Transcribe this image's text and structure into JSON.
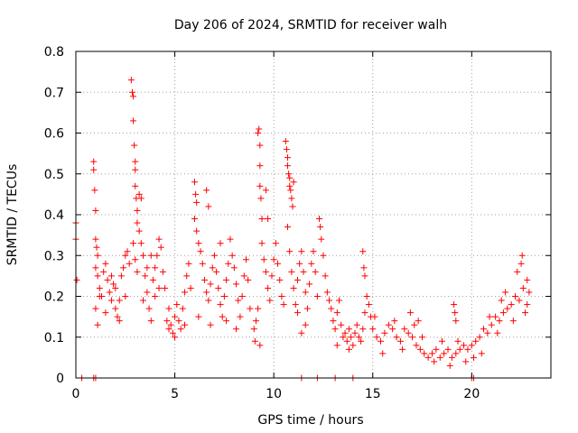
{
  "chart_data": {
    "type": "scatter",
    "title": "Day 206 of 2024, SRMTID for receiver walh",
    "xlabel": "GPS time / hours",
    "ylabel": "SRMTID / TECUs",
    "xlim": [
      0,
      24
    ],
    "ylim": [
      0,
      0.8
    ],
    "x_ticks": [
      0,
      5,
      10,
      15,
      20
    ],
    "y_ticks": [
      0,
      0.1,
      0.2,
      0.3,
      0.4,
      0.5,
      0.6,
      0.7,
      0.8
    ],
    "x_tick_labels": [
      "0",
      "5",
      "10",
      "15",
      "20"
    ],
    "y_tick_labels": [
      "0",
      "0.1",
      "0.2",
      "0.3",
      "0.4",
      "0.5",
      "0.6",
      "0.7",
      "0.8"
    ],
    "grid": true,
    "series": [
      {
        "name": "SRMTID",
        "color": "#ff0000",
        "marker": "plus",
        "points": [
          [
            0.0,
            0.38
          ],
          [
            0.0,
            0.34
          ],
          [
            0.05,
            0.24
          ],
          [
            0.3,
            0.0
          ],
          [
            0.9,
            0.0
          ],
          [
            1.0,
            0.0
          ],
          [
            0.9,
            0.53
          ],
          [
            0.9,
            0.51
          ],
          [
            0.95,
            0.46
          ],
          [
            1.0,
            0.41
          ],
          [
            1.0,
            0.34
          ],
          [
            1.05,
            0.32
          ],
          [
            1.1,
            0.3
          ],
          [
            1.0,
            0.27
          ],
          [
            1.1,
            0.25
          ],
          [
            1.2,
            0.22
          ],
          [
            1.3,
            0.2
          ],
          [
            1.4,
            0.26
          ],
          [
            1.5,
            0.28
          ],
          [
            1.6,
            0.24
          ],
          [
            1.7,
            0.21
          ],
          [
            1.8,
            0.19
          ],
          [
            1.9,
            0.23
          ],
          [
            2.0,
            0.17
          ],
          [
            2.1,
            0.15
          ],
          [
            2.2,
            0.19
          ],
          [
            2.3,
            0.25
          ],
          [
            2.4,
            0.27
          ],
          [
            2.5,
            0.3
          ],
          [
            2.6,
            0.31
          ],
          [
            2.7,
            0.28
          ],
          [
            1.0,
            0.17
          ],
          [
            1.1,
            0.13
          ],
          [
            1.2,
            0.2
          ],
          [
            1.5,
            0.16
          ],
          [
            1.8,
            0.25
          ],
          [
            2.0,
            0.22
          ],
          [
            2.2,
            0.14
          ],
          [
            2.5,
            0.2
          ],
          [
            2.8,
            0.73
          ],
          [
            2.85,
            0.7
          ],
          [
            2.9,
            0.69
          ],
          [
            2.9,
            0.63
          ],
          [
            2.95,
            0.57
          ],
          [
            3.0,
            0.51
          ],
          [
            3.0,
            0.53
          ],
          [
            3.0,
            0.47
          ],
          [
            3.05,
            0.44
          ],
          [
            3.1,
            0.41
          ],
          [
            3.1,
            0.38
          ],
          [
            3.2,
            0.36
          ],
          [
            3.2,
            0.45
          ],
          [
            3.3,
            0.44
          ],
          [
            3.3,
            0.33
          ],
          [
            3.4,
            0.3
          ],
          [
            3.5,
            0.25
          ],
          [
            3.6,
            0.21
          ],
          [
            3.7,
            0.17
          ],
          [
            3.8,
            0.14
          ],
          [
            3.9,
            0.24
          ],
          [
            4.0,
            0.27
          ],
          [
            4.1,
            0.3
          ],
          [
            4.2,
            0.34
          ],
          [
            4.3,
            0.32
          ],
          [
            4.4,
            0.26
          ],
          [
            4.5,
            0.22
          ],
          [
            3.4,
            0.19
          ],
          [
            3.6,
            0.27
          ],
          [
            3.8,
            0.3
          ],
          [
            4.0,
            0.2
          ],
          [
            4.2,
            0.22
          ],
          [
            2.9,
            0.33
          ],
          [
            3.0,
            0.29
          ],
          [
            3.1,
            0.26
          ],
          [
            4.6,
            0.14
          ],
          [
            4.7,
            0.12
          ],
          [
            4.8,
            0.13
          ],
          [
            4.9,
            0.11
          ],
          [
            5.0,
            0.15
          ],
          [
            5.1,
            0.18
          ],
          [
            5.2,
            0.14
          ],
          [
            5.3,
            0.12
          ],
          [
            5.4,
            0.17
          ],
          [
            5.5,
            0.21
          ],
          [
            5.6,
            0.25
          ],
          [
            5.7,
            0.28
          ],
          [
            5.8,
            0.22
          ],
          [
            4.7,
            0.17
          ],
          [
            5.0,
            0.1
          ],
          [
            5.5,
            0.13
          ],
          [
            6.0,
            0.48
          ],
          [
            6.05,
            0.45
          ],
          [
            6.1,
            0.43
          ],
          [
            6.0,
            0.39
          ],
          [
            6.1,
            0.36
          ],
          [
            6.2,
            0.33
          ],
          [
            6.3,
            0.31
          ],
          [
            6.4,
            0.28
          ],
          [
            6.5,
            0.24
          ],
          [
            6.6,
            0.21
          ],
          [
            6.7,
            0.19
          ],
          [
            6.8,
            0.23
          ],
          [
            6.9,
            0.27
          ],
          [
            7.0,
            0.3
          ],
          [
            7.1,
            0.26
          ],
          [
            7.2,
            0.22
          ],
          [
            7.3,
            0.18
          ],
          [
            7.4,
            0.15
          ],
          [
            7.5,
            0.2
          ],
          [
            7.6,
            0.24
          ],
          [
            7.7,
            0.28
          ],
          [
            7.8,
            0.34
          ],
          [
            7.9,
            0.3
          ],
          [
            8.0,
            0.27
          ],
          [
            8.1,
            0.23
          ],
          [
            8.2,
            0.19
          ],
          [
            8.3,
            0.15
          ],
          [
            8.4,
            0.2
          ],
          [
            8.5,
            0.25
          ],
          [
            8.6,
            0.29
          ],
          [
            8.7,
            0.24
          ],
          [
            8.8,
            0.17
          ],
          [
            6.6,
            0.46
          ],
          [
            6.7,
            0.42
          ],
          [
            6.2,
            0.15
          ],
          [
            6.8,
            0.13
          ],
          [
            7.3,
            0.33
          ],
          [
            7.6,
            0.14
          ],
          [
            8.1,
            0.12
          ],
          [
            9.0,
            0.12
          ],
          [
            9.05,
            0.09
          ],
          [
            9.1,
            0.14
          ],
          [
            9.2,
            0.6
          ],
          [
            9.25,
            0.61
          ],
          [
            9.3,
            0.57
          ],
          [
            9.3,
            0.52
          ],
          [
            9.3,
            0.47
          ],
          [
            9.35,
            0.44
          ],
          [
            9.4,
            0.39
          ],
          [
            9.4,
            0.33
          ],
          [
            9.5,
            0.29
          ],
          [
            9.6,
            0.26
          ],
          [
            9.7,
            0.22
          ],
          [
            9.8,
            0.19
          ],
          [
            9.9,
            0.25
          ],
          [
            10.0,
            0.29
          ],
          [
            10.1,
            0.33
          ],
          [
            10.2,
            0.28
          ],
          [
            10.3,
            0.24
          ],
          [
            10.4,
            0.2
          ],
          [
            10.5,
            0.18
          ],
          [
            9.6,
            0.46
          ],
          [
            9.7,
            0.39
          ],
          [
            9.2,
            0.17
          ],
          [
            9.3,
            0.08
          ],
          [
            10.6,
            0.58
          ],
          [
            10.65,
            0.56
          ],
          [
            10.7,
            0.54
          ],
          [
            10.7,
            0.52
          ],
          [
            10.75,
            0.5
          ],
          [
            10.8,
            0.49
          ],
          [
            10.8,
            0.47
          ],
          [
            10.85,
            0.46
          ],
          [
            10.9,
            0.44
          ],
          [
            10.95,
            0.42
          ],
          [
            11.0,
            0.48
          ],
          [
            10.7,
            0.37
          ],
          [
            10.8,
            0.31
          ],
          [
            10.9,
            0.26
          ],
          [
            11.0,
            0.22
          ],
          [
            11.1,
            0.18
          ],
          [
            11.2,
            0.24
          ],
          [
            11.3,
            0.28
          ],
          [
            11.4,
            0.31
          ],
          [
            11.5,
            0.26
          ],
          [
            11.6,
            0.21
          ],
          [
            11.7,
            0.17
          ],
          [
            11.8,
            0.23
          ],
          [
            11.9,
            0.28
          ],
          [
            12.0,
            0.31
          ],
          [
            12.1,
            0.26
          ],
          [
            12.2,
            0.2
          ],
          [
            11.2,
            0.16
          ],
          [
            11.4,
            0.11
          ],
          [
            11.6,
            0.13
          ],
          [
            12.3,
            0.39
          ],
          [
            12.35,
            0.37
          ],
          [
            12.4,
            0.34
          ],
          [
            12.5,
            0.3
          ],
          [
            12.6,
            0.25
          ],
          [
            12.7,
            0.21
          ],
          [
            12.8,
            0.19
          ],
          [
            12.9,
            0.17
          ],
          [
            13.0,
            0.14
          ],
          [
            13.1,
            0.12
          ],
          [
            13.2,
            0.16
          ],
          [
            13.3,
            0.19
          ],
          [
            13.4,
            0.13
          ],
          [
            13.5,
            0.1
          ],
          [
            13.6,
            0.11
          ],
          [
            13.7,
            0.09
          ],
          [
            13.8,
            0.12
          ],
          [
            13.9,
            0.1
          ],
          [
            14.0,
            0.08
          ],
          [
            14.1,
            0.11
          ],
          [
            14.2,
            0.13
          ],
          [
            14.3,
            0.1
          ],
          [
            14.4,
            0.09
          ],
          [
            14.5,
            0.12
          ],
          [
            14.6,
            0.16
          ],
          [
            14.7,
            0.2
          ],
          [
            14.8,
            0.18
          ],
          [
            14.9,
            0.15
          ],
          [
            14.5,
            0.31
          ],
          [
            14.55,
            0.27
          ],
          [
            14.6,
            0.25
          ],
          [
            13.2,
            0.08
          ],
          [
            13.8,
            0.07
          ],
          [
            15.0,
            0.12
          ],
          [
            15.2,
            0.1
          ],
          [
            15.4,
            0.09
          ],
          [
            15.6,
            0.11
          ],
          [
            15.8,
            0.13
          ],
          [
            16.0,
            0.12
          ],
          [
            16.2,
            0.1
          ],
          [
            16.4,
            0.09
          ],
          [
            16.6,
            0.12
          ],
          [
            16.8,
            0.11
          ],
          [
            17.0,
            0.1
          ],
          [
            17.2,
            0.08
          ],
          [
            17.4,
            0.07
          ],
          [
            17.6,
            0.06
          ],
          [
            17.8,
            0.05
          ],
          [
            18.0,
            0.06
          ],
          [
            18.2,
            0.07
          ],
          [
            18.4,
            0.05
          ],
          [
            18.6,
            0.06
          ],
          [
            18.8,
            0.07
          ],
          [
            19.0,
            0.05
          ],
          [
            19.2,
            0.06
          ],
          [
            19.4,
            0.07
          ],
          [
            19.6,
            0.08
          ],
          [
            19.8,
            0.07
          ],
          [
            15.1,
            0.15
          ],
          [
            15.5,
            0.06
          ],
          [
            16.1,
            0.14
          ],
          [
            16.5,
            0.07
          ],
          [
            17.1,
            0.13
          ],
          [
            17.5,
            0.1
          ],
          [
            18.1,
            0.04
          ],
          [
            18.5,
            0.09
          ],
          [
            18.9,
            0.03
          ],
          [
            19.3,
            0.09
          ],
          [
            19.7,
            0.04
          ],
          [
            19.1,
            0.18
          ],
          [
            19.15,
            0.16
          ],
          [
            19.2,
            0.14
          ],
          [
            16.9,
            0.16
          ],
          [
            17.3,
            0.14
          ],
          [
            20.0,
            0.08
          ],
          [
            20.2,
            0.09
          ],
          [
            20.4,
            0.1
          ],
          [
            20.6,
            0.12
          ],
          [
            20.8,
            0.11
          ],
          [
            21.0,
            0.13
          ],
          [
            21.2,
            0.15
          ],
          [
            21.4,
            0.14
          ],
          [
            21.6,
            0.16
          ],
          [
            21.8,
            0.17
          ],
          [
            22.0,
            0.18
          ],
          [
            22.2,
            0.2
          ],
          [
            22.4,
            0.19
          ],
          [
            22.6,
            0.22
          ],
          [
            22.8,
            0.24
          ],
          [
            20.1,
            0.05
          ],
          [
            20.5,
            0.06
          ],
          [
            20.9,
            0.15
          ],
          [
            21.3,
            0.11
          ],
          [
            21.7,
            0.21
          ],
          [
            22.1,
            0.14
          ],
          [
            22.5,
            0.28
          ],
          [
            22.55,
            0.3
          ],
          [
            22.7,
            0.16
          ],
          [
            22.9,
            0.21
          ],
          [
            21.5,
            0.19
          ],
          [
            22.3,
            0.26
          ],
          [
            22.8,
            0.18
          ],
          [
            11.4,
            0.0
          ],
          [
            12.2,
            0.0
          ],
          [
            13.1,
            0.0
          ],
          [
            14.0,
            0.0
          ],
          [
            20.0,
            0.0
          ],
          [
            20.1,
            0.0
          ]
        ]
      }
    ]
  }
}
